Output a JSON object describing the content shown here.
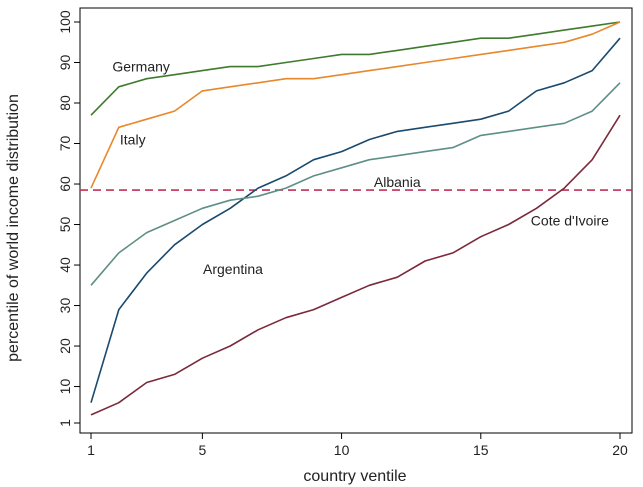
{
  "chart_data": {
    "type": "line",
    "xlabel": "country ventile",
    "ylabel": "percentile of world income distribution",
    "xlim": [
      1,
      20
    ],
    "ylim": [
      1,
      100
    ],
    "x_ticks": [
      1,
      5,
      10,
      15,
      20
    ],
    "y_ticks": [
      1,
      10,
      20,
      30,
      40,
      50,
      60,
      70,
      80,
      90,
      100
    ],
    "grid": false,
    "legend": "none",
    "x": [
      1,
      2,
      3,
      4,
      5,
      6,
      7,
      8,
      9,
      10,
      11,
      12,
      13,
      14,
      15,
      16,
      17,
      18,
      19,
      20
    ],
    "series": [
      {
        "name": "Germany",
        "color": "#3f7a2e",
        "values": [
          77,
          84,
          86,
          87,
          88,
          89,
          89,
          90,
          91,
          92,
          92,
          93,
          94,
          95,
          96,
          96,
          97,
          98,
          99,
          100
        ]
      },
      {
        "name": "Italy",
        "color": "#e8872b",
        "values": [
          59,
          74,
          76,
          78,
          83,
          84,
          85,
          86,
          86,
          87,
          88,
          89,
          90,
          91,
          92,
          93,
          94,
          95,
          97,
          100
        ]
      },
      {
        "name": "Argentina",
        "color": "#1a4a6e",
        "values": [
          6,
          29,
          38,
          45,
          50,
          54,
          59,
          62,
          66,
          68,
          71,
          73,
          74,
          75,
          76,
          78,
          83,
          85,
          88,
          96
        ]
      },
      {
        "name": "",
        "color": "#5e8f86",
        "values": [
          35,
          43,
          48,
          51,
          54,
          56,
          57,
          59,
          62,
          64,
          66,
          67,
          68,
          69,
          72,
          73,
          74,
          75,
          78,
          85
        ]
      },
      {
        "name": "Cote d'Ivoire",
        "color": "#7a2a3a",
        "values": [
          3,
          6,
          11,
          13,
          17,
          20,
          24,
          27,
          29,
          32,
          35,
          37,
          41,
          43,
          47,
          50,
          54,
          59,
          66,
          77
        ]
      }
    ],
    "reference_lines": [
      {
        "name": "Albania",
        "y": 58.5,
        "color": "#c0325a",
        "style": "dashed"
      }
    ],
    "annotations": [
      {
        "text": "Germany",
        "x": 2.8,
        "y": 89
      },
      {
        "text": "Italy",
        "x": 2.5,
        "y": 71
      },
      {
        "text": "Albania",
        "x": 12,
        "y": 60.5
      },
      {
        "text": "Cote d'Ivoire",
        "x": 18.2,
        "y": 51
      },
      {
        "text": "Argentina",
        "x": 6.1,
        "y": 39
      }
    ]
  }
}
